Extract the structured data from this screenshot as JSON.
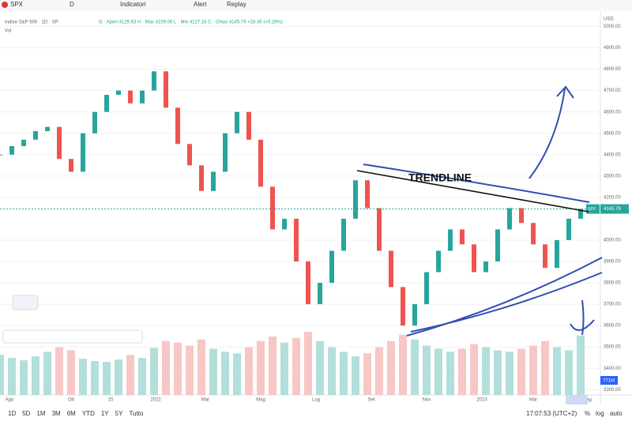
{
  "toolbar": {
    "symbol": "SPX",
    "interval": "D",
    "items": [
      "Indicatori",
      "Alert",
      "Replay"
    ]
  },
  "legend": {
    "title": "Indice S&P 500 · 1D · SP",
    "ohlc": "O · Apert 4129.63 H · Max 4159.06 L · Min 4127.18 C · Chius 4145.79 +16.45 (+0.28%)",
    "volume": "Vol"
  },
  "chart_data": {
    "type": "candlestick",
    "currency": "USD",
    "annotation": "TRENDLINE",
    "symbol_tag": "SPX",
    "volume_label": "771M",
    "values": [
      4400,
      4440,
      4470,
      4510,
      4530,
      4380,
      4320,
      4500,
      4600,
      4680,
      4700,
      4640,
      4700,
      4790,
      4620,
      4450,
      4350,
      4230,
      4320,
      4500,
      4600,
      4470,
      4250,
      4050,
      4100,
      3900,
      3700,
      3800,
      3950,
      4100,
      4280,
      4150,
      3950,
      3780,
      3600,
      3700,
      3850,
      3950,
      4050,
      3980,
      3850,
      3900,
      4050,
      4150,
      4080,
      3980,
      3870,
      4000,
      4100,
      4145.79
    ],
    "volume": [
      520,
      480,
      450,
      500,
      560,
      620,
      580,
      470,
      440,
      430,
      460,
      520,
      480,
      610,
      700,
      680,
      640,
      720,
      600,
      560,
      540,
      620,
      700,
      760,
      680,
      740,
      820,
      700,
      620,
      560,
      500,
      540,
      620,
      700,
      780,
      720,
      640,
      600,
      560,
      600,
      660,
      620,
      580,
      560,
      600,
      640,
      700,
      620,
      580,
      771
    ],
    "ylim": [
      3275,
      5050
    ],
    "yticks": [
      {
        "value": 5000,
        "label": "5000.00"
      },
      {
        "value": 4900,
        "label": "4900.00"
      },
      {
        "value": 4800,
        "label": "4800.00"
      },
      {
        "value": 4700,
        "label": "4700.00"
      },
      {
        "value": 4600,
        "label": "4600.00"
      },
      {
        "value": 4500,
        "label": "4500.00"
      },
      {
        "value": 4400,
        "label": "4400.00"
      },
      {
        "value": 4300,
        "label": "4300.00"
      },
      {
        "value": 4200,
        "label": "4200.00"
      },
      {
        "value": 4000,
        "label": "4000.00"
      },
      {
        "value": 3900,
        "label": "3900.00"
      },
      {
        "value": 3800,
        "label": "3800.00"
      },
      {
        "value": 3700,
        "label": "3700.00"
      },
      {
        "value": 3600,
        "label": "3600.00"
      },
      {
        "value": 3500,
        "label": "3500.00"
      },
      {
        "value": 3400,
        "label": "3400.00"
      },
      {
        "value": 3300,
        "label": "3300.00"
      }
    ],
    "x_labels": [
      "Ago",
      "Ott",
      "15",
      "2022",
      "Mar",
      "Mag",
      "Lug",
      "Set",
      "Nov",
      "2023",
      "Mar",
      "Mag"
    ]
  },
  "bottom": {
    "ranges": [
      "1D",
      "5D",
      "1M",
      "3M",
      "6M",
      "YTD",
      "1Y",
      "5Y",
      "Tutto"
    ],
    "time": "17:07:53 (UTC+2)",
    "options": [
      "%",
      "log",
      "auto"
    ]
  }
}
